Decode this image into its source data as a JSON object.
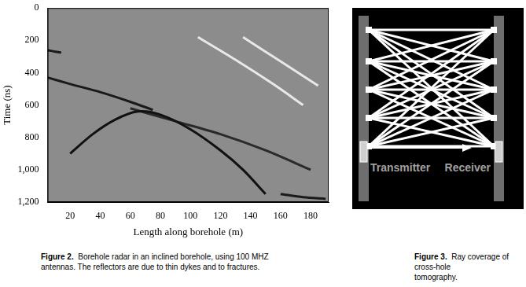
{
  "chart_data": {
    "type": "line",
    "x_label": "Length along borehole (m)",
    "y_label": "Time (ns)",
    "xlim": [
      5,
      192
    ],
    "xticks": [
      20,
      40,
      60,
      80,
      100,
      120,
      140,
      160,
      180
    ],
    "ylim": [
      0,
      1200
    ],
    "yticks": [
      0,
      200,
      400,
      600,
      800,
      1000,
      1200
    ],
    "reversed": "y",
    "grid": false,
    "series": [
      {
        "color": "#1a1a1a",
        "x": [
          5,
          10,
          14
        ],
        "values": [
          260,
          270,
          275
        ]
      },
      {
        "color": "#1a1a1a",
        "x": [
          5,
          20,
          40,
          60,
          75
        ],
        "values": [
          430,
          470,
          520,
          580,
          630
        ]
      },
      {
        "color": "#111111",
        "x": [
          20,
          35,
          50,
          65,
          80,
          100,
          120,
          135,
          150
        ],
        "values": [
          900,
          780,
          690,
          640,
          660,
          750,
          880,
          1000,
          1150
        ]
      },
      {
        "color": "#2a2a2a",
        "x": [
          60,
          90,
          120,
          150,
          180
        ],
        "values": [
          620,
          700,
          780,
          880,
          1000
        ]
      },
      {
        "color": "#e8e8e8",
        "x": [
          105,
          130,
          155,
          175
        ],
        "values": [
          180,
          320,
          470,
          600
        ]
      },
      {
        "color": "#e8e8e8",
        "x": [
          135,
          160,
          185
        ],
        "values": [
          180,
          330,
          480
        ]
      },
      {
        "color": "#1a1a1a",
        "x": [
          160,
          175,
          190
        ],
        "values": [
          1150,
          1170,
          1180
        ]
      }
    ]
  },
  "captions": [
    {
      "label": "Figure 2.",
      "lines": [
        "Borehole radar in an inclined borehole, using 100 MHZ",
        "antennas.  The reflectors are due to thin dykes and to fractures."
      ]
    },
    {
      "label": "Figure 3.",
      "lines": [
        "Ray coverage of cross-hole",
        "tomography."
      ]
    }
  ],
  "diagram": {
    "labels": [
      "Transmitter",
      "Receiver"
    ]
  }
}
